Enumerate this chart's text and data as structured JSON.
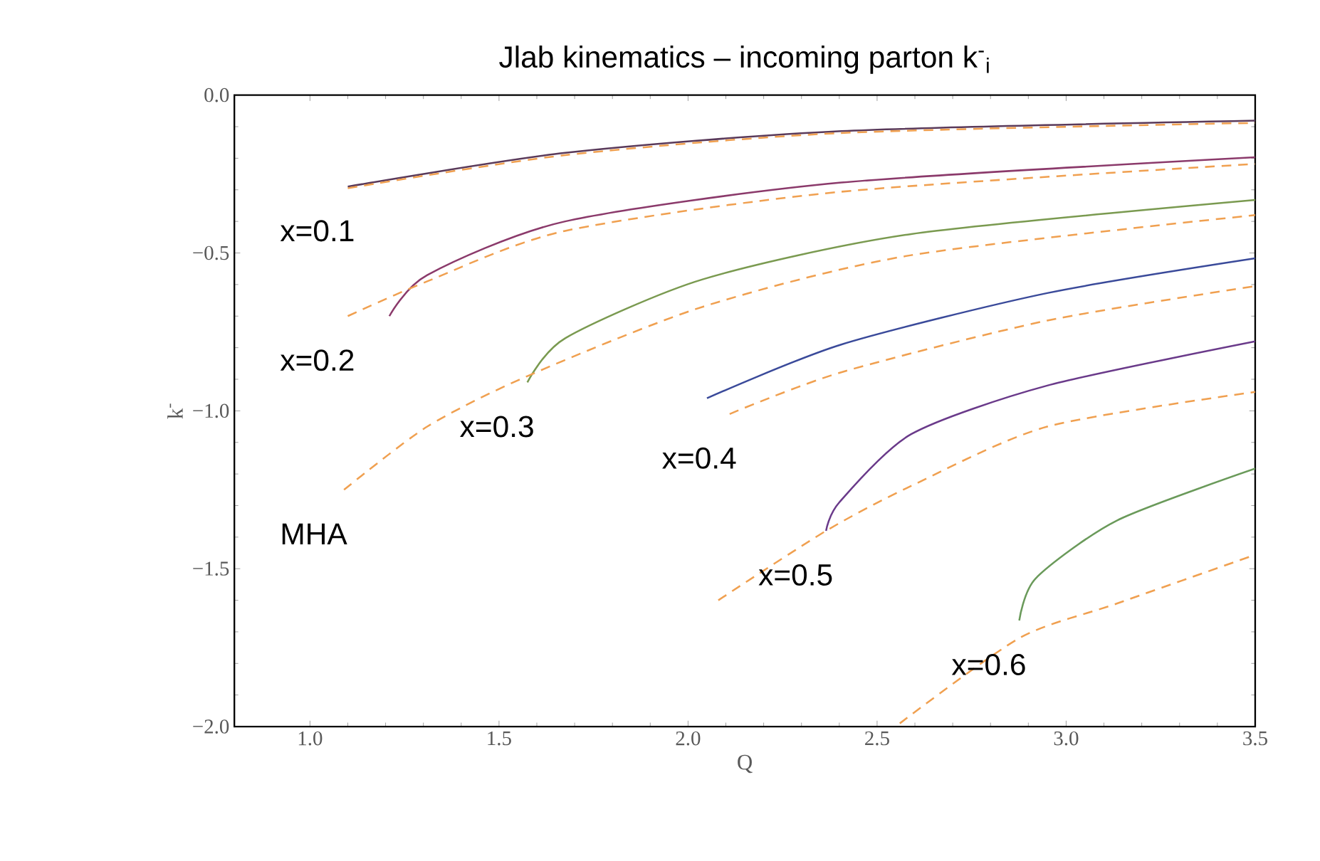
{
  "chart_data": {
    "type": "line",
    "title": "Jlab kinematics – incoming parton k$^{-}$$_{i}$",
    "xlabel": "Q",
    "ylabel": "k$^{-}$",
    "xlim": [
      0.8,
      3.5
    ],
    "ylim": [
      -2.0,
      0.0
    ],
    "xticks": [
      {
        "value": 1.0,
        "label": "1.0"
      },
      {
        "value": 1.5,
        "label": "1.5"
      },
      {
        "value": 2.0,
        "label": "2.0"
      },
      {
        "value": 2.5,
        "label": "2.5"
      },
      {
        "value": 3.0,
        "label": "3.0"
      },
      {
        "value": 3.5,
        "label": "3.5"
      }
    ],
    "yticks": [
      {
        "value": 0.0,
        "label": "0.0"
      },
      {
        "value": -0.5,
        "label": "−0.5"
      },
      {
        "value": -1.0,
        "label": "−1.0"
      },
      {
        "value": -1.5,
        "label": "−1.5"
      },
      {
        "value": -2.0,
        "label": "−2.0"
      }
    ],
    "marker": "none",
    "series": [
      {
        "color": "#5a3a5a",
        "line_style": "solid",
        "x": [
          1.1,
          1.675,
          2.405,
          3.5
        ],
        "values": [
          -0.29,
          -0.183,
          -0.114,
          -0.081
        ]
      },
      {
        "color": "#f0a050",
        "line_style": "dashed",
        "x": [
          1.1,
          1.675,
          2.405,
          3.5
        ],
        "values": [
          -0.295,
          -0.19,
          -0.12,
          -0.088
        ]
      },
      {
        "color": "#8b3a6b",
        "line_style": "solid",
        "x": [
          1.21,
          1.31,
          1.675,
          2.405,
          3.5
        ],
        "values": [
          -0.7,
          -0.57,
          -0.4,
          -0.277,
          -0.197
        ]
      },
      {
        "color": "#f0a050",
        "line_style": "dashed",
        "x": [
          1.1,
          1.31,
          1.675,
          2.405,
          3.5
        ],
        "values": [
          -0.7,
          -0.59,
          -0.43,
          -0.306,
          -0.218
        ]
      },
      {
        "color": "#7a9a50",
        "line_style": "solid",
        "x": [
          1.575,
          1.675,
          2.04,
          2.59,
          3.5
        ],
        "values": [
          -0.91,
          -0.77,
          -0.583,
          -0.44,
          -0.332
        ]
      },
      {
        "color": "#f0a050",
        "line_style": "dashed",
        "x": [
          1.09,
          1.31,
          1.575,
          2.04,
          2.59,
          3.5
        ],
        "values": [
          -1.25,
          -1.05,
          -0.89,
          -0.67,
          -0.507,
          -0.38
        ]
      },
      {
        "color": "#3a4a9a",
        "line_style": "solid",
        "x": [
          2.05,
          2.405,
          2.95,
          3.5
        ],
        "values": [
          -0.96,
          -0.79,
          -0.627,
          -0.517
        ]
      },
      {
        "color": "#f0a050",
        "line_style": "dashed",
        "x": [
          2.11,
          2.405,
          2.95,
          3.5
        ],
        "values": [
          -1.01,
          -0.878,
          -0.714,
          -0.605
        ]
      },
      {
        "color": "#6a3a8a",
        "line_style": "solid",
        "x": [
          2.365,
          2.4,
          2.59,
          2.95,
          3.5
        ],
        "values": [
          -1.38,
          -1.29,
          -1.074,
          -0.92,
          -0.78
        ]
      },
      {
        "color": "#f0a050",
        "line_style": "dashed",
        "x": [
          2.08,
          2.365,
          2.59,
          2.95,
          3.5
        ],
        "values": [
          -1.6,
          -1.38,
          -1.238,
          -1.05,
          -0.94
        ]
      },
      {
        "color": "#6a9a5a",
        "line_style": "solid",
        "x": [
          2.876,
          2.92,
          3.135,
          3.5
        ],
        "values": [
          -1.664,
          -1.53,
          -1.347,
          -1.183
        ]
      },
      {
        "color": "#f0a050",
        "line_style": "dashed",
        "x": [
          2.56,
          2.876,
          3.135,
          3.5
        ],
        "values": [
          -1.99,
          -1.72,
          -1.61,
          -1.456
        ]
      }
    ],
    "annotations": [
      {
        "text": "x=0.1",
        "x": 1.1,
        "y": -0.29
      },
      {
        "text": "x=0.2",
        "x": 1.1,
        "y": -0.7
      },
      {
        "text": "x=0.3",
        "x": 1.575,
        "y": -0.91
      },
      {
        "text": "x=0.4",
        "x": 2.11,
        "y": -1.01
      },
      {
        "text": "MHA",
        "x": 1.09,
        "y": -1.25
      },
      {
        "text": "x=0.5",
        "x": 2.365,
        "y": -1.38
      },
      {
        "text": "x=0.6",
        "x": 2.876,
        "y": -1.664
      }
    ]
  }
}
